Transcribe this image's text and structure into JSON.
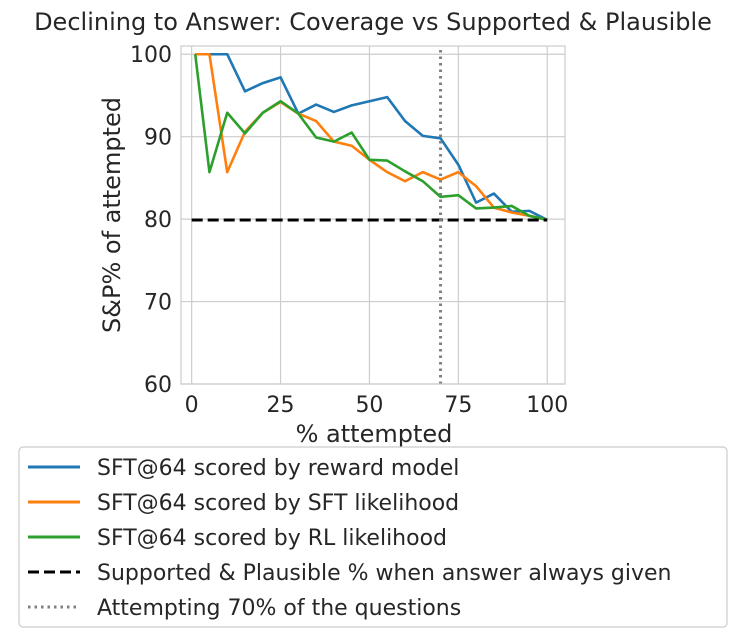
{
  "chart_data": {
    "type": "line",
    "title": "Declining to Answer: Coverage vs Supported & Plausible",
    "xlabel": "% attempted",
    "ylabel": "S&P% of attempted",
    "xlim": [
      -3,
      105
    ],
    "ylim": [
      60,
      101
    ],
    "xticks": [
      0,
      25,
      50,
      75,
      100
    ],
    "yticks": [
      60,
      70,
      80,
      90,
      100
    ],
    "xtick_labels": [
      "0",
      "25",
      "50",
      "75",
      "100"
    ],
    "ytick_labels": [
      "60",
      "70",
      "80",
      "90",
      "100"
    ],
    "grid": true,
    "legend_position": "below",
    "series": [
      {
        "name": "SFT@64 scored by reward model",
        "color": "#1f77b4",
        "style": "solid",
        "x": [
          1,
          5,
          10,
          15,
          20,
          25,
          30,
          35,
          40,
          45,
          50,
          55,
          60,
          65,
          70,
          75,
          80,
          85,
          90,
          95,
          100
        ],
        "y": [
          100,
          100,
          100,
          95.5,
          96.5,
          97.2,
          92.8,
          93.9,
          93.0,
          93.8,
          94.3,
          94.8,
          91.9,
          90.1,
          89.8,
          86.6,
          82.0,
          83.1,
          80.9,
          81.0,
          79.9
        ]
      },
      {
        "name": "SFT@64 scored by SFT likelihood",
        "color": "#ff7f0e",
        "style": "solid",
        "x": [
          1,
          5,
          10,
          15,
          20,
          25,
          30,
          35,
          40,
          45,
          50,
          55,
          60,
          65,
          70,
          75,
          80,
          85,
          90,
          95,
          100
        ],
        "y": [
          100,
          100,
          85.7,
          90.6,
          92.9,
          94.2,
          92.8,
          91.9,
          89.4,
          88.9,
          87.2,
          85.7,
          84.6,
          85.7,
          84.8,
          85.7,
          84.0,
          81.4,
          80.8,
          80.4,
          79.9
        ]
      },
      {
        "name": "SFT@64 scored by RL likelihood",
        "color": "#2ca02c",
        "style": "solid",
        "x": [
          1,
          5,
          10,
          15,
          20,
          25,
          30,
          35,
          40,
          45,
          50,
          55,
          60,
          65,
          70,
          75,
          80,
          85,
          90,
          95,
          100
        ],
        "y": [
          100,
          85.7,
          92.9,
          90.4,
          92.9,
          94.3,
          92.8,
          89.9,
          89.4,
          90.5,
          87.2,
          87.1,
          85.8,
          84.6,
          82.7,
          82.9,
          81.3,
          81.4,
          81.6,
          80.4,
          79.9
        ]
      },
      {
        "name": "Supported & Plausible % when answer always given",
        "color": "#000000",
        "style": "dashed",
        "x": [
          0,
          100
        ],
        "y": [
          79.9,
          79.9
        ]
      },
      {
        "name": "Attempting 70% of the questions",
        "color": "#808080",
        "style": "dotted",
        "vertical": true,
        "x": [
          70,
          70
        ],
        "y": [
          60,
          101
        ]
      }
    ]
  }
}
